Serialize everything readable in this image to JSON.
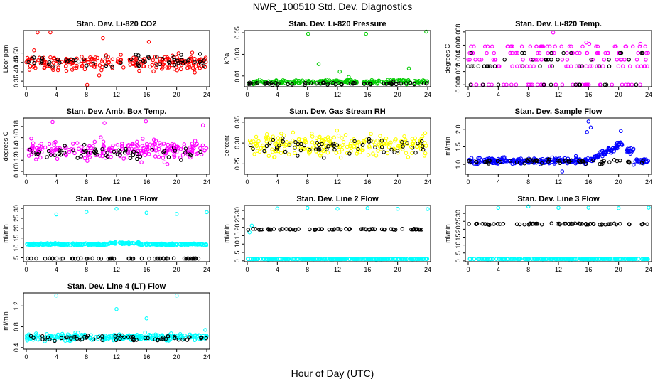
{
  "page": {
    "title": "NWR_100510  Std. Dev. Diagnostics",
    "xlabel": "Hour of Day (UTC)"
  },
  "colors": {
    "red": "#ff0000",
    "green": "#00cc00",
    "magenta": "#ff00ff",
    "yellow": "#ffff00",
    "blue": "#0000ff",
    "cyan": "#00ffff",
    "black": "#000000"
  },
  "chart_data": [
    {
      "id": "co2",
      "type": "scatter",
      "title": "Stan. Dev. Li-820 CO2",
      "ylabel": "Licor ppm",
      "xlim": [
        0,
        24
      ],
      "xticks": [
        0,
        4,
        8,
        12,
        16,
        20,
        24
      ],
      "ylim": [
        0.32,
        0.62
      ],
      "yticks": [
        0.35,
        0.4,
        0.45,
        0.5
      ],
      "yticklabels": [
        "0.35",
        "0.40",
        "0.45",
        "0.50"
      ],
      "series": [
        {
          "color": "#ff0000",
          "base": 0.45,
          "spread": 0.05,
          "count": 220,
          "seed": 11,
          "outliers": [
            [
              1.5,
              0.61
            ],
            [
              3.2,
              0.61
            ],
            [
              8.1,
              0.33
            ],
            [
              10.2,
              0.58
            ],
            [
              16.3,
              0.56
            ]
          ]
        },
        {
          "color": "#000000",
          "base": 0.46,
          "spread": 0.04,
          "count": 60,
          "seed": 12,
          "outliers": []
        }
      ]
    },
    {
      "id": "pressure",
      "type": "scatter",
      "title": "Stan. Dev. Li-820 Pressure",
      "ylabel": "kPa",
      "xlim": [
        0,
        24
      ],
      "xticks": [
        0,
        4,
        8,
        12,
        16,
        20,
        24
      ],
      "ylim": [
        0,
        0.052
      ],
      "yticks": [
        0.01,
        0.03,
        0.05
      ],
      "yticklabels": [
        "0.01",
        "0.03",
        "0.05"
      ],
      "series": [
        {
          "color": "#00cc00",
          "base": 0.0045,
          "spread": 0.0018,
          "count": 200,
          "seed": 21,
          "outliers": [
            [
              8.1,
              0.049
            ],
            [
              9.5,
              0.021
            ],
            [
              12.3,
              0.014
            ],
            [
              15.8,
              0.049
            ],
            [
              21.5,
              0.017
            ],
            [
              23.8,
              0.051
            ],
            [
              13.5,
              0.009
            ]
          ]
        },
        {
          "color": "#000000",
          "base": 0.003,
          "spread": 0.0012,
          "count": 60,
          "seed": 22,
          "outliers": []
        }
      ]
    },
    {
      "id": "temp",
      "type": "scatter",
      "title": "Stan. Dev. Li-820 Temp.",
      "ylabel": "degrees C",
      "xlim": [
        0,
        24
      ],
      "xticks": [
        0,
        4,
        8,
        12,
        16,
        20,
        24
      ],
      "ylim": [
        -0.0003,
        0.0082
      ],
      "yticks": [
        0,
        0.002,
        0.004,
        0.006,
        0.008
      ],
      "yticklabels": [
        "0.000",
        "0.002",
        "0.004",
        "0.006",
        "0.008"
      ],
      "levels": true,
      "series": [
        {
          "color": "#ff00ff",
          "levelValues": [
            0,
            0.0028,
            0.0038,
            0.0048,
            0.0058
          ],
          "count": 170,
          "seed": 31,
          "outliers": [
            [
              11.3,
              0.0079
            ],
            [
              15.7,
              0.0064
            ],
            [
              16.1,
              0.0062
            ],
            [
              22.9,
              0.0062
            ]
          ]
        },
        {
          "color": "#000000",
          "levelValues": [
            0,
            0.0028,
            0.0038,
            0.0048
          ],
          "count": 50,
          "seed": 32,
          "outliers": []
        }
      ]
    },
    {
      "id": "ambbox",
      "type": "scatter",
      "title": "Stan. Dev. Amb. Box Temp.",
      "ylabel": "degrees C",
      "xlim": [
        0,
        24
      ],
      "xticks": [
        0,
        4,
        8,
        12,
        16,
        20,
        24
      ],
      "ylim": [
        0.095,
        0.195
      ],
      "yticks": [
        0.1,
        0.12,
        0.14,
        0.16,
        0.18
      ],
      "yticklabels": [
        "0.10",
        "0.12",
        "0.14",
        "0.16",
        "0.18"
      ],
      "series": [
        {
          "color": "#ff00ff",
          "base": 0.138,
          "spread": 0.017,
          "count": 230,
          "seed": 41,
          "outliers": [
            [
              3.5,
              0.188
            ],
            [
              10.4,
              0.186
            ],
            [
              15.9,
              0.189
            ],
            [
              23.5,
              0.182
            ]
          ]
        },
        {
          "color": "#000000",
          "base": 0.133,
          "spread": 0.011,
          "count": 60,
          "seed": 42,
          "outliers": []
        }
      ]
    },
    {
      "id": "rh",
      "type": "scatter",
      "title": "Stan. Dev. Gas Stream RH",
      "ylabel": "percent",
      "xlim": [
        0,
        24
      ],
      "xticks": [
        0,
        4,
        8,
        12,
        16,
        20,
        24
      ],
      "ylim": [
        0.225,
        0.36
      ],
      "yticks": [
        0.25,
        0.3,
        0.35
      ],
      "yticklabels": [
        "0.25",
        "0.30",
        "0.35"
      ],
      "series": [
        {
          "color": "#ffff00",
          "base": 0.295,
          "spread": 0.025,
          "count": 240,
          "seed": 51,
          "outliers": []
        },
        {
          "color": "#000000",
          "base": 0.29,
          "spread": 0.022,
          "count": 60,
          "seed": 52,
          "outliers": []
        }
      ]
    },
    {
      "id": "sample",
      "type": "scatter",
      "title": "Stan. Dev. Sample Flow",
      "ylabel": "ml/min",
      "xlim": [
        0,
        24
      ],
      "xticks": [
        0,
        4,
        8,
        12,
        16,
        20,
        24
      ],
      "ylim": [
        0.72,
        2.32
      ],
      "yticks": [
        1.0,
        1.5,
        2.0
      ],
      "yticklabels": [
        "1.0",
        "1.5",
        "2.0"
      ],
      "trend": "sample",
      "series": [
        {
          "color": "#0000ff",
          "base": 1.1,
          "spread": 0.09,
          "count": 300,
          "seed": 61,
          "outliers": [
            [
              16.0,
              2.22
            ],
            [
              16.3,
              2.05
            ],
            [
              15.8,
              1.92
            ],
            [
              20.3,
              1.95
            ],
            [
              12.5,
              0.8
            ]
          ]
        },
        {
          "color": "#000000",
          "base": 1.08,
          "spread": 0.06,
          "count": 60,
          "seed": 62,
          "outliers": []
        }
      ]
    },
    {
      "id": "line1",
      "type": "scatter",
      "title": "Stan. Dev. Line 1 Flow",
      "ylabel": "ml/min",
      "xlim": [
        0,
        24
      ],
      "xticks": [
        0,
        4,
        8,
        12,
        16,
        20,
        24
      ],
      "ylim": [
        3.0,
        31.5
      ],
      "yticks": [
        5,
        10,
        15,
        20,
        25,
        30
      ],
      "yticklabels": [
        "5",
        "10",
        "15",
        "20",
        "25",
        "30"
      ],
      "series": [
        {
          "color": "#00ffff",
          "base": 11.8,
          "spread": 0.55,
          "count": 300,
          "seed": 71,
          "outliers": [
            [
              4,
              27
            ],
            [
              8,
              28.2
            ],
            [
              12,
              29.8
            ],
            [
              16,
              27.8
            ],
            [
              20,
              27.2
            ],
            [
              24,
              28.1
            ]
          ]
        },
        {
          "color": "#000000",
          "base": 4.6,
          "spread": 0.1,
          "count": 60,
          "seed": 72,
          "outliers": []
        }
      ]
    },
    {
      "id": "line2",
      "type": "scatter",
      "title": "Stan. Dev. Line 2 Flow",
      "ylabel": "ml/min",
      "xlim": [
        0,
        24
      ],
      "xticks": [
        0,
        4,
        8,
        12,
        16,
        20,
        24
      ],
      "ylim": [
        -0.5,
        33
      ],
      "yticks": [
        0,
        5,
        10,
        15,
        20,
        25,
        30
      ],
      "yticklabels": [
        "0",
        "5",
        "10",
        "15",
        "20",
        "25",
        "30"
      ],
      "series": [
        {
          "color": "#00ffff",
          "base": 1.1,
          "spread": 0.12,
          "count": 250,
          "seed": 81,
          "outliers": [
            [
              4,
              31.2
            ],
            [
              8,
              31.5
            ],
            [
              12,
              31
            ],
            [
              16,
              31.4
            ],
            [
              20,
              31
            ],
            [
              24,
              30.9
            ],
            [
              0.3,
              17
            ],
            [
              0.6,
              21
            ]
          ]
        },
        {
          "color": "#000000",
          "base": 18.8,
          "spread": 0.35,
          "count": 70,
          "seed": 82,
          "outliers": []
        }
      ]
    },
    {
      "id": "line3",
      "type": "scatter",
      "title": "Stan. Dev. Line 3 Flow",
      "ylabel": "ml/min",
      "xlim": [
        0,
        24
      ],
      "xticks": [
        0,
        4,
        8,
        12,
        16,
        20,
        24
      ],
      "ylim": [
        -0.5,
        35
      ],
      "yticks": [
        0,
        5,
        10,
        15,
        20,
        25,
        30
      ],
      "yticklabels": [
        "0",
        "5",
        "10",
        "15",
        "20",
        "25",
        "30"
      ],
      "series": [
        {
          "color": "#00ffff",
          "base": 1.2,
          "spread": 0.12,
          "count": 250,
          "seed": 91,
          "outliers": [
            [
              4,
              33.5
            ],
            [
              8,
              34.4
            ],
            [
              12,
              33.5
            ],
            [
              16,
              33.6
            ],
            [
              20,
              33.3
            ],
            [
              24,
              33.6
            ]
          ]
        },
        {
          "color": "#000000",
          "base": 23.3,
          "spread": 0.35,
          "count": 70,
          "seed": 92,
          "outliers": []
        }
      ]
    },
    {
      "id": "line4",
      "type": "scatter",
      "title": "Stan. Dev. Line 4 (LT) Flow",
      "ylabel": "ml/min",
      "xlim": [
        0,
        24
      ],
      "xticks": [
        0,
        4,
        8,
        12,
        16,
        20,
        24
      ],
      "ylim": [
        0.37,
        1.45
      ],
      "yticks": [
        0.4,
        0.8,
        1.2
      ],
      "yticklabels": [
        "0.4",
        "0.8",
        "1.2"
      ],
      "series": [
        {
          "color": "#00ffff",
          "base": 0.6,
          "spread": 0.065,
          "count": 280,
          "seed": 101,
          "outliers": [
            [
              4,
              1.4
            ],
            [
              12,
              1.14
            ],
            [
              20,
              1.4
            ],
            [
              16,
              0.96
            ],
            [
              23.8,
              0.74
            ]
          ]
        },
        {
          "color": "#000000",
          "base": 0.58,
          "spread": 0.055,
          "count": 60,
          "seed": 102,
          "outliers": []
        }
      ]
    }
  ]
}
